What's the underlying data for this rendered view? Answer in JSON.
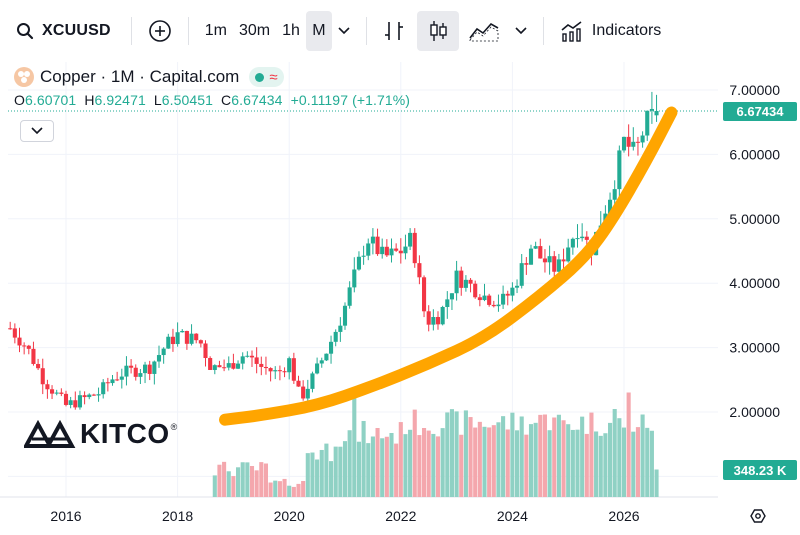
{
  "toolbar": {
    "symbol": "XCUUSD",
    "timeframes": [
      "1m",
      "30m",
      "1h",
      "M"
    ],
    "active_timeframe": "M",
    "indicators_label": "Indicators"
  },
  "legend": {
    "title": "Copper · 1M · Capital.com",
    "open_label": "O",
    "open": "6.60701",
    "high_label": "H",
    "high": "6.92471",
    "low_label": "L",
    "low": "6.50451",
    "close_label": "C",
    "close": "6.67434",
    "change": "+0.11197 (+1.71%)"
  },
  "price_tag": "6.67434",
  "volume_tag": "348.23 K",
  "watermark": "KITCO",
  "watermark_reg": "®",
  "colors": {
    "up": "#22ab94",
    "down": "#f23645",
    "vol_up": "#8fd1c4",
    "vol_down": "#f4a7ad",
    "trend": "#ffa500"
  },
  "chart_data": {
    "type": "candlestick",
    "title": "Copper · 1M · Capital.com",
    "xlabel": "",
    "ylabel": "",
    "x_ticks": [
      "2016",
      "2018",
      "2020",
      "2022",
      "2024",
      "2026"
    ],
    "y_ticks": [
      "2.00000",
      "3.00000",
      "4.00000",
      "5.00000",
      "6.00000",
      "7.00000"
    ],
    "ylim": [
      1.1,
      7.3
    ],
    "xlim": [
      2015.0,
      2027.0
    ],
    "last_price": 6.67434,
    "last_volume": "348.23 K",
    "anchors": [
      [
        2015.0,
        3.3
      ],
      [
        2015.3,
        3.0
      ],
      [
        2015.6,
        2.5
      ],
      [
        2015.8,
        2.3
      ],
      [
        2016.0,
        2.1
      ],
      [
        2016.3,
        2.2
      ],
      [
        2016.6,
        2.3
      ],
      [
        2016.8,
        2.5
      ],
      [
        2017.0,
        2.6
      ],
      [
        2017.5,
        2.7
      ],
      [
        2017.8,
        3.05
      ],
      [
        2018.0,
        3.2
      ],
      [
        2018.4,
        3.1
      ],
      [
        2018.6,
        2.7
      ],
      [
        2018.9,
        2.7
      ],
      [
        2019.2,
        2.9
      ],
      [
        2019.5,
        2.7
      ],
      [
        2019.8,
        2.6
      ],
      [
        2020.0,
        2.8
      ],
      [
        2020.2,
        2.2
      ],
      [
        2020.4,
        2.5
      ],
      [
        2020.7,
        3.0
      ],
      [
        2020.95,
        3.5
      ],
      [
        2021.2,
        4.2
      ],
      [
        2021.4,
        4.7
      ],
      [
        2021.7,
        4.4
      ],
      [
        2022.0,
        4.5
      ],
      [
        2022.2,
        4.7
      ],
      [
        2022.45,
        3.4
      ],
      [
        2022.7,
        3.5
      ],
      [
        2023.0,
        4.1
      ],
      [
        2023.2,
        4.0
      ],
      [
        2023.5,
        3.8
      ],
      [
        2023.8,
        3.7
      ],
      [
        2024.0,
        3.9
      ],
      [
        2024.35,
        4.6
      ],
      [
        2024.5,
        4.4
      ],
      [
        2024.8,
        4.2
      ],
      [
        2025.0,
        4.6
      ],
      [
        2025.2,
        4.9
      ],
      [
        2025.4,
        4.5
      ],
      [
        2025.6,
        5.0
      ],
      [
        2025.8,
        5.5
      ],
      [
        2026.0,
        6.2
      ],
      [
        2026.2,
        6.0
      ],
      [
        2026.4,
        6.5
      ],
      [
        2026.6,
        6.67
      ]
    ],
    "volume_spikes": [
      [
        2021.15,
        0.9
      ],
      [
        2021.5,
        0.55
      ],
      [
        2024.6,
        0.75
      ],
      [
        2025.8,
        0.8
      ],
      [
        2026.1,
        0.95
      ],
      [
        2026.35,
        0.75
      ],
      [
        2026.55,
        0.65
      ]
    ],
    "trend_curve": [
      [
        2018.85,
        1.88
      ],
      [
        2019.5,
        1.95
      ],
      [
        2020.5,
        2.1
      ],
      [
        2021.5,
        2.4
      ],
      [
        2022.5,
        2.75
      ],
      [
        2023.5,
        3.15
      ],
      [
        2024.5,
        3.8
      ],
      [
        2025.3,
        4.4
      ],
      [
        2025.8,
        5.0
      ],
      [
        2026.4,
        5.9
      ],
      [
        2026.85,
        6.65
      ]
    ],
    "price_line": 6.67434
  }
}
